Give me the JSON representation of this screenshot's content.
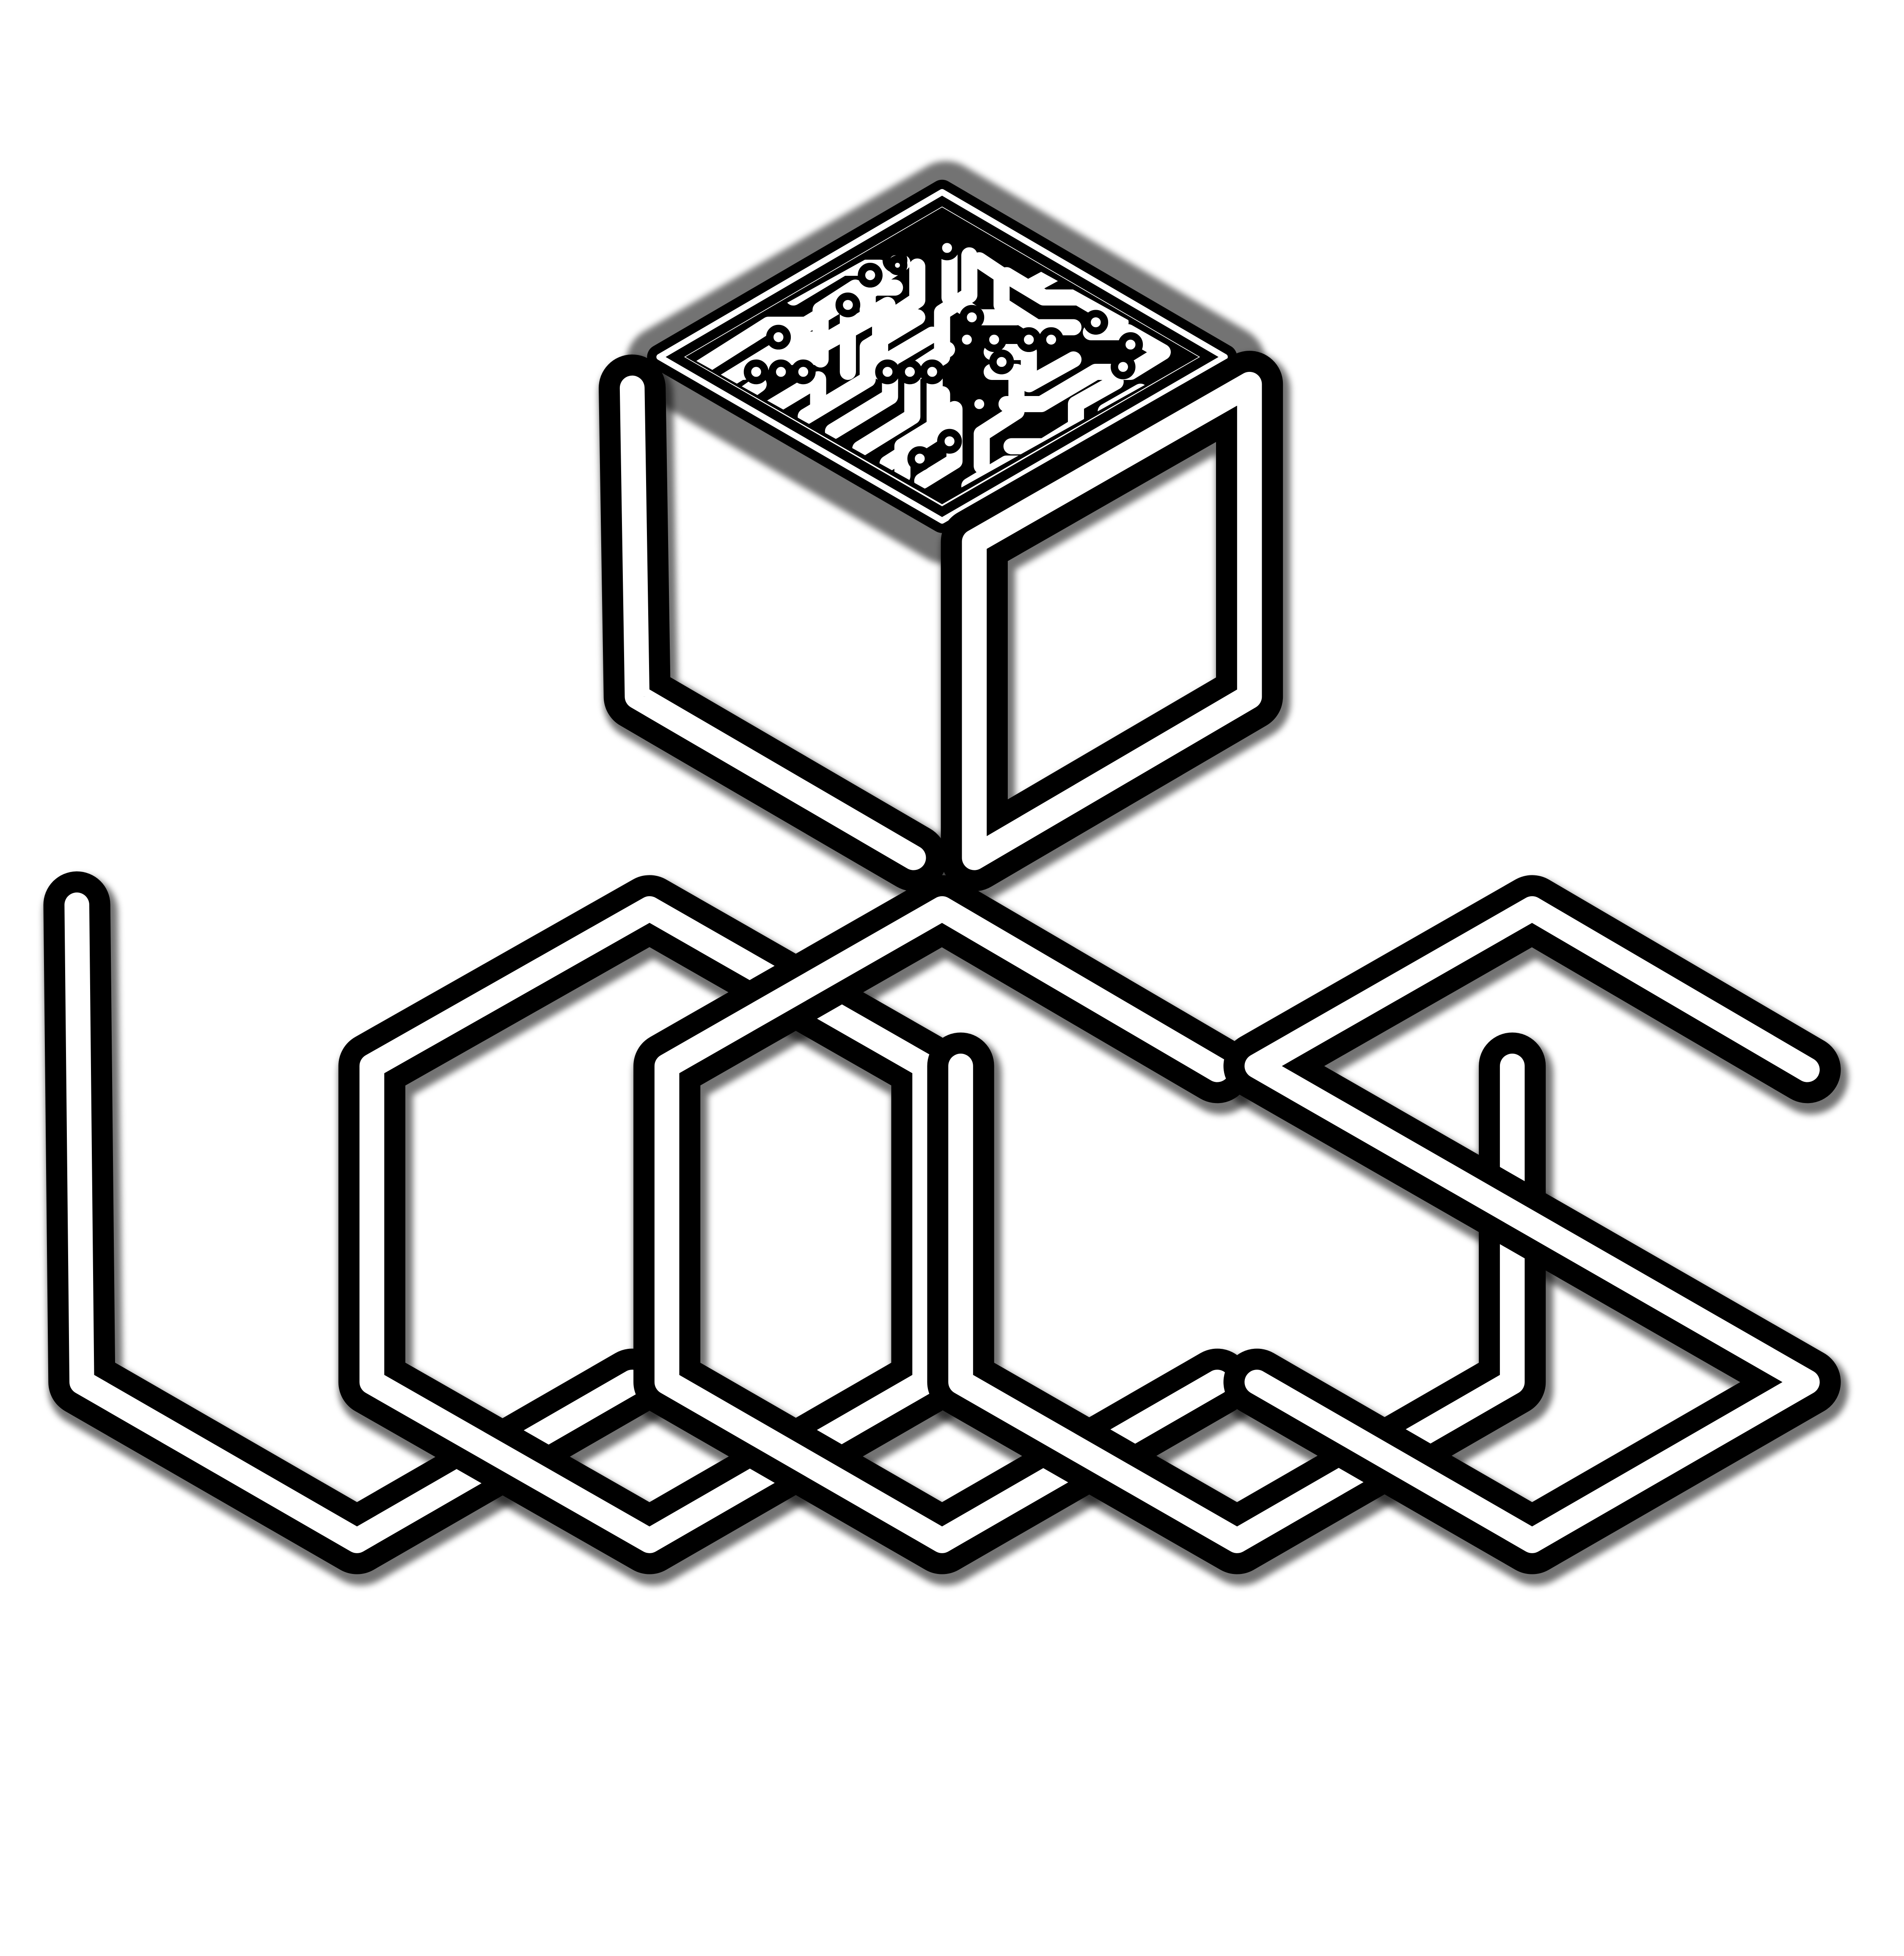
{
  "logo": {
    "colors": {
      "background": "#ffffff",
      "stroke": "#000000",
      "inner_line": "#ffffff",
      "circuit_fill": "#000000"
    },
    "cube": {
      "top_face": "circuit-pattern",
      "left_face": "outline-open",
      "right_face": "outline"
    },
    "wordmark": {
      "glyph_count": 5,
      "style": "hexagonal double-line"
    }
  }
}
